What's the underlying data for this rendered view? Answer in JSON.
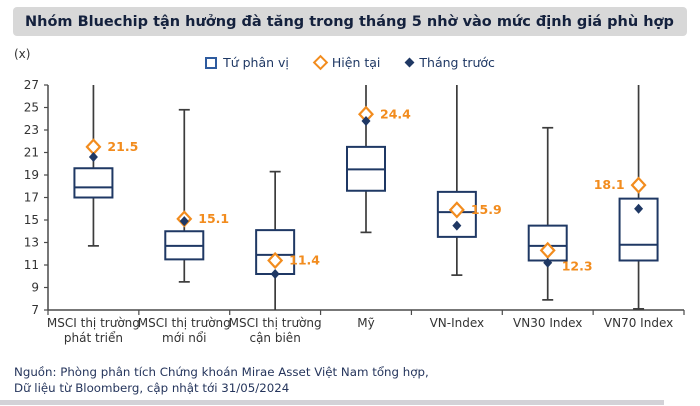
{
  "title": "Nhóm Bluechip tận hưởng đà tăng trong tháng 5 nhờ vào mức định giá phù hợp",
  "unit_label": "(x)",
  "legend": {
    "items": [
      {
        "label": "Tứ phân vị",
        "marker": "box-outline"
      },
      {
        "label": "Hiện tại",
        "marker": "open-diamond"
      },
      {
        "label": "Tháng trước",
        "marker": "filled-diamond"
      }
    ]
  },
  "footer": {
    "line1": "Nguồn: Phòng phân tích Chứng khoán Mirae Asset Việt Nam tổng hợp,",
    "line2": "Dữ liệu từ Bloomberg, cập nhật tới 31/05/2024"
  },
  "colors": {
    "box_stroke": "#1f3864",
    "whisker": "#3c3c3c",
    "axis": "#4a4a4a",
    "axis_text": "#333333",
    "accent_orange": "#f28c1e",
    "navy_marker": "#1f3864",
    "title_bar_bg": "#d8d8d8"
  },
  "chart_data": {
    "type": "boxplot",
    "title": "Nhóm Bluechip tận hưởng đà tăng trong tháng 5 nhờ vào mức định giá phù hợp",
    "ylabel": "(x)",
    "ylim": [
      7,
      27
    ],
    "ytick_step": 2,
    "grid": false,
    "legend_position": "top",
    "legend_entries": [
      "Tứ phân vị",
      "Hiện tại",
      "Tháng trước"
    ],
    "categories": [
      "MSCI thị trường phát triển",
      "MSCI thị trường mới nổi",
      "MSCI thị trường cận biên",
      "Mỹ",
      "VN-Index",
      "VN30 Index",
      "VN70 Index"
    ],
    "boxes": [
      {
        "name_lines": [
          "MSCI thị trường",
          "phát triển"
        ],
        "whisker_high": 27,
        "cap_high": false,
        "q3": 19.6,
        "median": 17.9,
        "q1": 17.0,
        "whisker_low": 12.7,
        "cap_low": true,
        "current": 21.5,
        "previous": 20.6,
        "label": "21.5",
        "label_side": "right",
        "label_dy": 0
      },
      {
        "name_lines": [
          "MSCI thị trường",
          "mới nổi"
        ],
        "whisker_high": 24.8,
        "cap_high": true,
        "q3": 14.0,
        "median": 12.7,
        "q1": 11.5,
        "whisker_low": 9.5,
        "cap_low": true,
        "current": 15.1,
        "previous": 14.9,
        "label": "15.1",
        "label_side": "right",
        "label_dy": 0
      },
      {
        "name_lines": [
          "MSCI thị trường",
          "cận biên"
        ],
        "whisker_high": 19.3,
        "cap_high": true,
        "q3": 14.1,
        "median": 11.9,
        "q1": 10.2,
        "whisker_low": 7,
        "cap_low": false,
        "current": 11.4,
        "previous": 10.2,
        "label": "11.4",
        "label_side": "right",
        "label_dy": 0
      },
      {
        "name_lines": [
          "Mỹ"
        ],
        "whisker_high": 27,
        "cap_high": false,
        "q3": 21.5,
        "median": 19.5,
        "q1": 17.6,
        "whisker_low": 13.9,
        "cap_low": true,
        "current": 24.4,
        "previous": 23.8,
        "label": "24.4",
        "label_side": "right",
        "label_dy": 0
      },
      {
        "name_lines": [
          "VN-Index"
        ],
        "whisker_high": 27,
        "cap_high": false,
        "q3": 17.5,
        "median": 15.7,
        "q1": 13.5,
        "whisker_low": 10.1,
        "cap_low": true,
        "current": 15.9,
        "previous": 14.5,
        "label": "15.9",
        "label_side": "right",
        "label_dy": 0
      },
      {
        "name_lines": [
          "VN30 Index"
        ],
        "whisker_high": 23.2,
        "cap_high": true,
        "q3": 14.5,
        "median": 12.7,
        "q1": 11.4,
        "whisker_low": 7.9,
        "cap_low": true,
        "current": 12.3,
        "previous": 11.2,
        "label": "12.3",
        "label_side": "right",
        "label_dy": 16
      },
      {
        "name_lines": [
          "VN70 Index"
        ],
        "whisker_high": 27,
        "cap_high": false,
        "q3": 16.9,
        "median": 12.8,
        "q1": 11.4,
        "whisker_low": 7.1,
        "cap_low": true,
        "current": 18.1,
        "previous": 16.0,
        "label": "18.1",
        "label_side": "left",
        "label_dy": 0
      }
    ]
  }
}
